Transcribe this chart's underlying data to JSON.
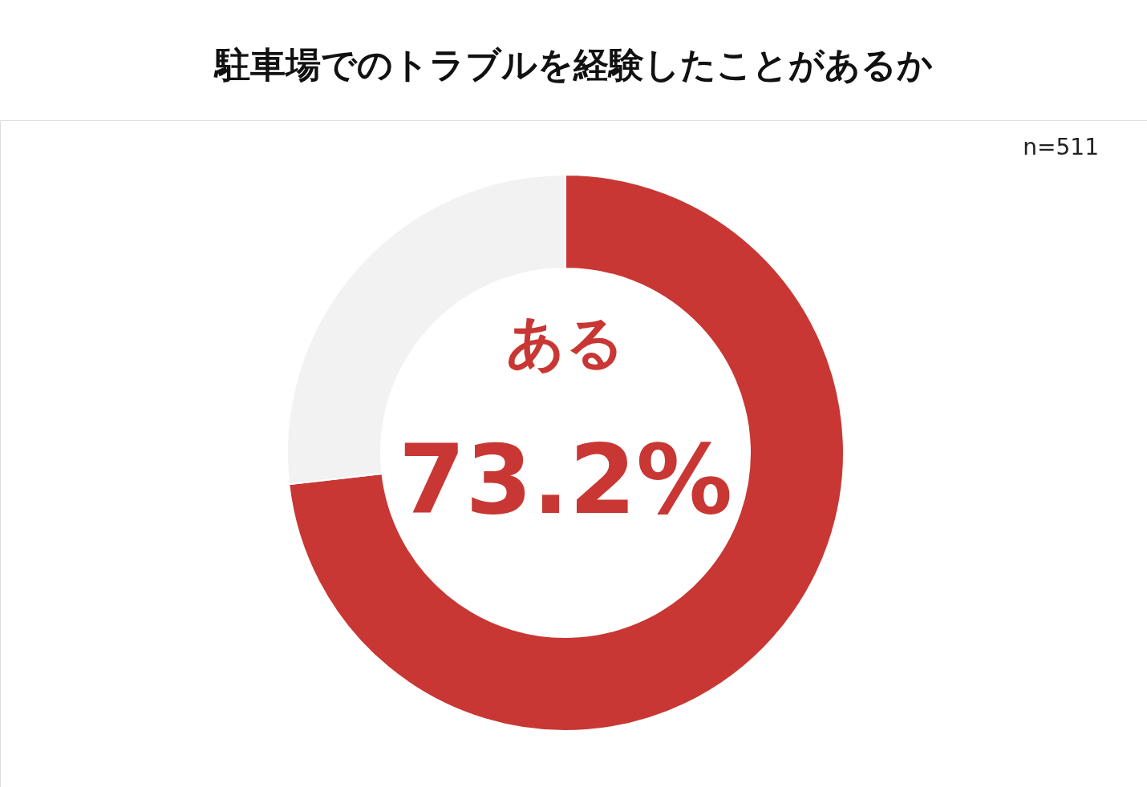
{
  "chart_data": {
    "type": "donut",
    "title": "駐車場でのトラブルを経験したことがあるか",
    "categories": [
      "ある",
      null
    ],
    "values": [
      73.2,
      26.8
    ],
    "colors": [
      "#c83733",
      "#f2f2f2"
    ],
    "value_labels": [
      "73.2%",
      null
    ],
    "annotations": [
      "n=511"
    ],
    "legend": false
  }
}
